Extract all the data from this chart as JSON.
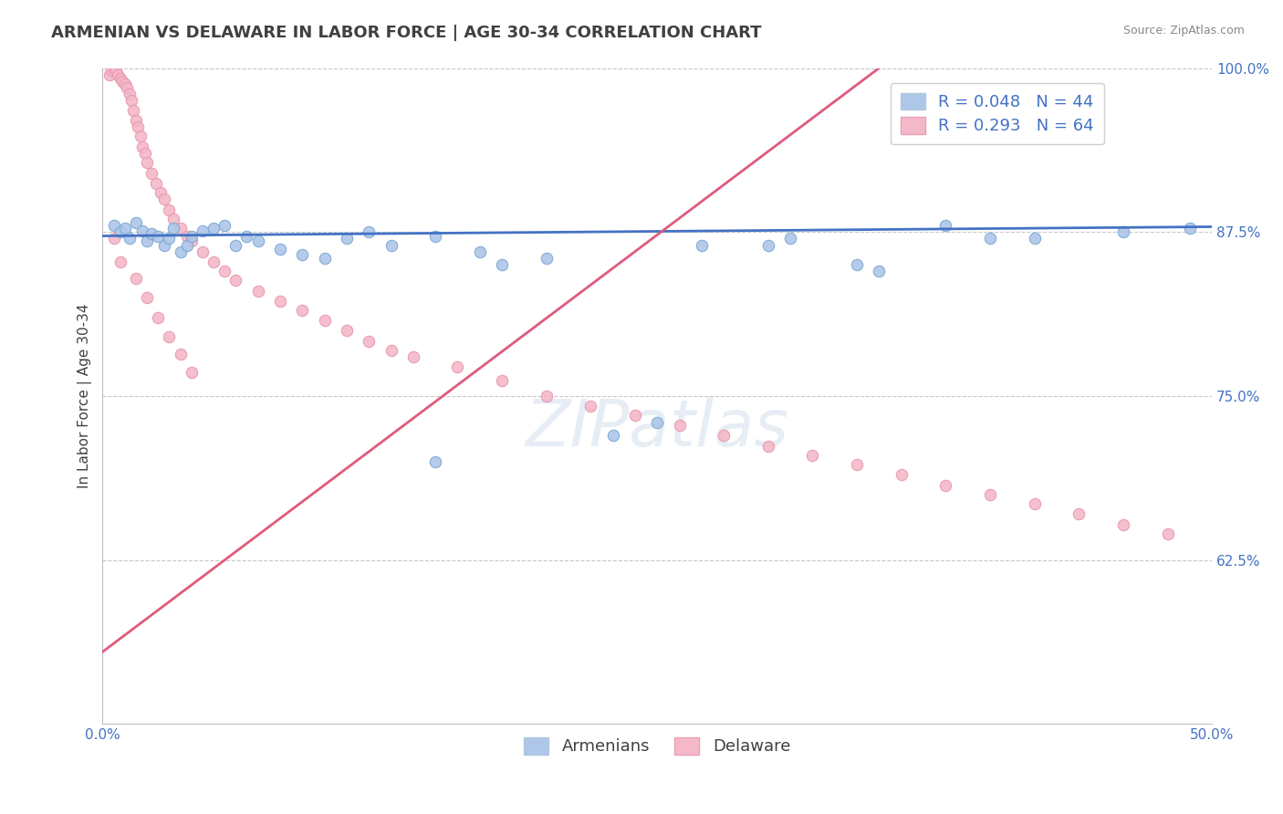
{
  "title": "ARMENIAN VS DELAWARE IN LABOR FORCE | AGE 30-34 CORRELATION CHART",
  "source": "Source: ZipAtlas.com",
  "ylabel": "In Labor Force | Age 30-34",
  "xlim": [
    0.0,
    0.5
  ],
  "ylim": [
    0.5,
    1.0
  ],
  "ytick_positions": [
    0.625,
    0.75,
    0.875,
    1.0
  ],
  "ytick_labels": [
    "62.5%",
    "75.0%",
    "87.5%",
    "100.0%"
  ],
  "watermark": "ZIPatlas",
  "blue_scatter_x": [
    0.005,
    0.008,
    0.01,
    0.012,
    0.015,
    0.018,
    0.02,
    0.022,
    0.025,
    0.028,
    0.03,
    0.032,
    0.035,
    0.038,
    0.04,
    0.045,
    0.05,
    0.055,
    0.06,
    0.065,
    0.07,
    0.08,
    0.09,
    0.1,
    0.11,
    0.12,
    0.13,
    0.15,
    0.17,
    0.2,
    0.23,
    0.27,
    0.31,
    0.35,
    0.38,
    0.42,
    0.46,
    0.3,
    0.34,
    0.49,
    0.15,
    0.18,
    0.25,
    0.4
  ],
  "blue_scatter_y": [
    0.88,
    0.875,
    0.878,
    0.87,
    0.882,
    0.876,
    0.868,
    0.874,
    0.872,
    0.865,
    0.87,
    0.878,
    0.86,
    0.865,
    0.872,
    0.876,
    0.878,
    0.88,
    0.865,
    0.872,
    0.868,
    0.862,
    0.858,
    0.855,
    0.87,
    0.875,
    0.865,
    0.872,
    0.86,
    0.855,
    0.72,
    0.865,
    0.87,
    0.845,
    0.88,
    0.87,
    0.875,
    0.865,
    0.85,
    0.878,
    0.7,
    0.85,
    0.73,
    0.87
  ],
  "pink_scatter_x": [
    0.003,
    0.004,
    0.005,
    0.006,
    0.007,
    0.008,
    0.009,
    0.01,
    0.011,
    0.012,
    0.013,
    0.014,
    0.015,
    0.016,
    0.017,
    0.018,
    0.019,
    0.02,
    0.022,
    0.024,
    0.026,
    0.028,
    0.03,
    0.032,
    0.035,
    0.038,
    0.04,
    0.045,
    0.05,
    0.055,
    0.06,
    0.07,
    0.08,
    0.09,
    0.1,
    0.11,
    0.12,
    0.13,
    0.14,
    0.16,
    0.18,
    0.2,
    0.22,
    0.24,
    0.26,
    0.28,
    0.3,
    0.32,
    0.34,
    0.36,
    0.38,
    0.4,
    0.42,
    0.44,
    0.46,
    0.48,
    0.005,
    0.008,
    0.015,
    0.02,
    0.025,
    0.03,
    0.035,
    0.04
  ],
  "pink_scatter_y": [
    0.995,
    0.998,
    1.0,
    0.998,
    0.995,
    0.992,
    0.99,
    0.988,
    0.985,
    0.98,
    0.975,
    0.968,
    0.96,
    0.955,
    0.948,
    0.94,
    0.935,
    0.928,
    0.92,
    0.912,
    0.905,
    0.9,
    0.892,
    0.885,
    0.878,
    0.872,
    0.868,
    0.86,
    0.852,
    0.845,
    0.838,
    0.83,
    0.822,
    0.815,
    0.808,
    0.8,
    0.792,
    0.785,
    0.78,
    0.772,
    0.762,
    0.75,
    0.742,
    0.735,
    0.728,
    0.72,
    0.712,
    0.705,
    0.698,
    0.69,
    0.682,
    0.675,
    0.668,
    0.66,
    0.652,
    0.645,
    0.87,
    0.852,
    0.84,
    0.825,
    0.81,
    0.795,
    0.782,
    0.768
  ],
  "blue_line_x0": 0.0,
  "blue_line_x1": 0.5,
  "blue_line_y0": 0.872,
  "blue_line_y1": 0.879,
  "pink_line_x0": 0.0,
  "pink_line_x1": 0.35,
  "pink_line_y0": 0.555,
  "pink_line_y1": 1.0,
  "blue_line_color": "#4472c4",
  "pink_line_color": "#e05a7a",
  "scatter_blue_color": "#aec6e8",
  "scatter_pink_color": "#f4b8c8",
  "scatter_blue_edge": "#7aa8d4",
  "scatter_pink_edge": "#e898b0",
  "title_color": "#404040",
  "source_color": "#888888",
  "axis_label_color": "#404040",
  "tick_color": "#4472c4",
  "grid_color": "#c8c8c8",
  "background_color": "#ffffff",
  "title_fontsize": 13,
  "axis_label_fontsize": 11,
  "tick_fontsize": 11,
  "legend_fontsize": 13,
  "scatter_size": 80
}
